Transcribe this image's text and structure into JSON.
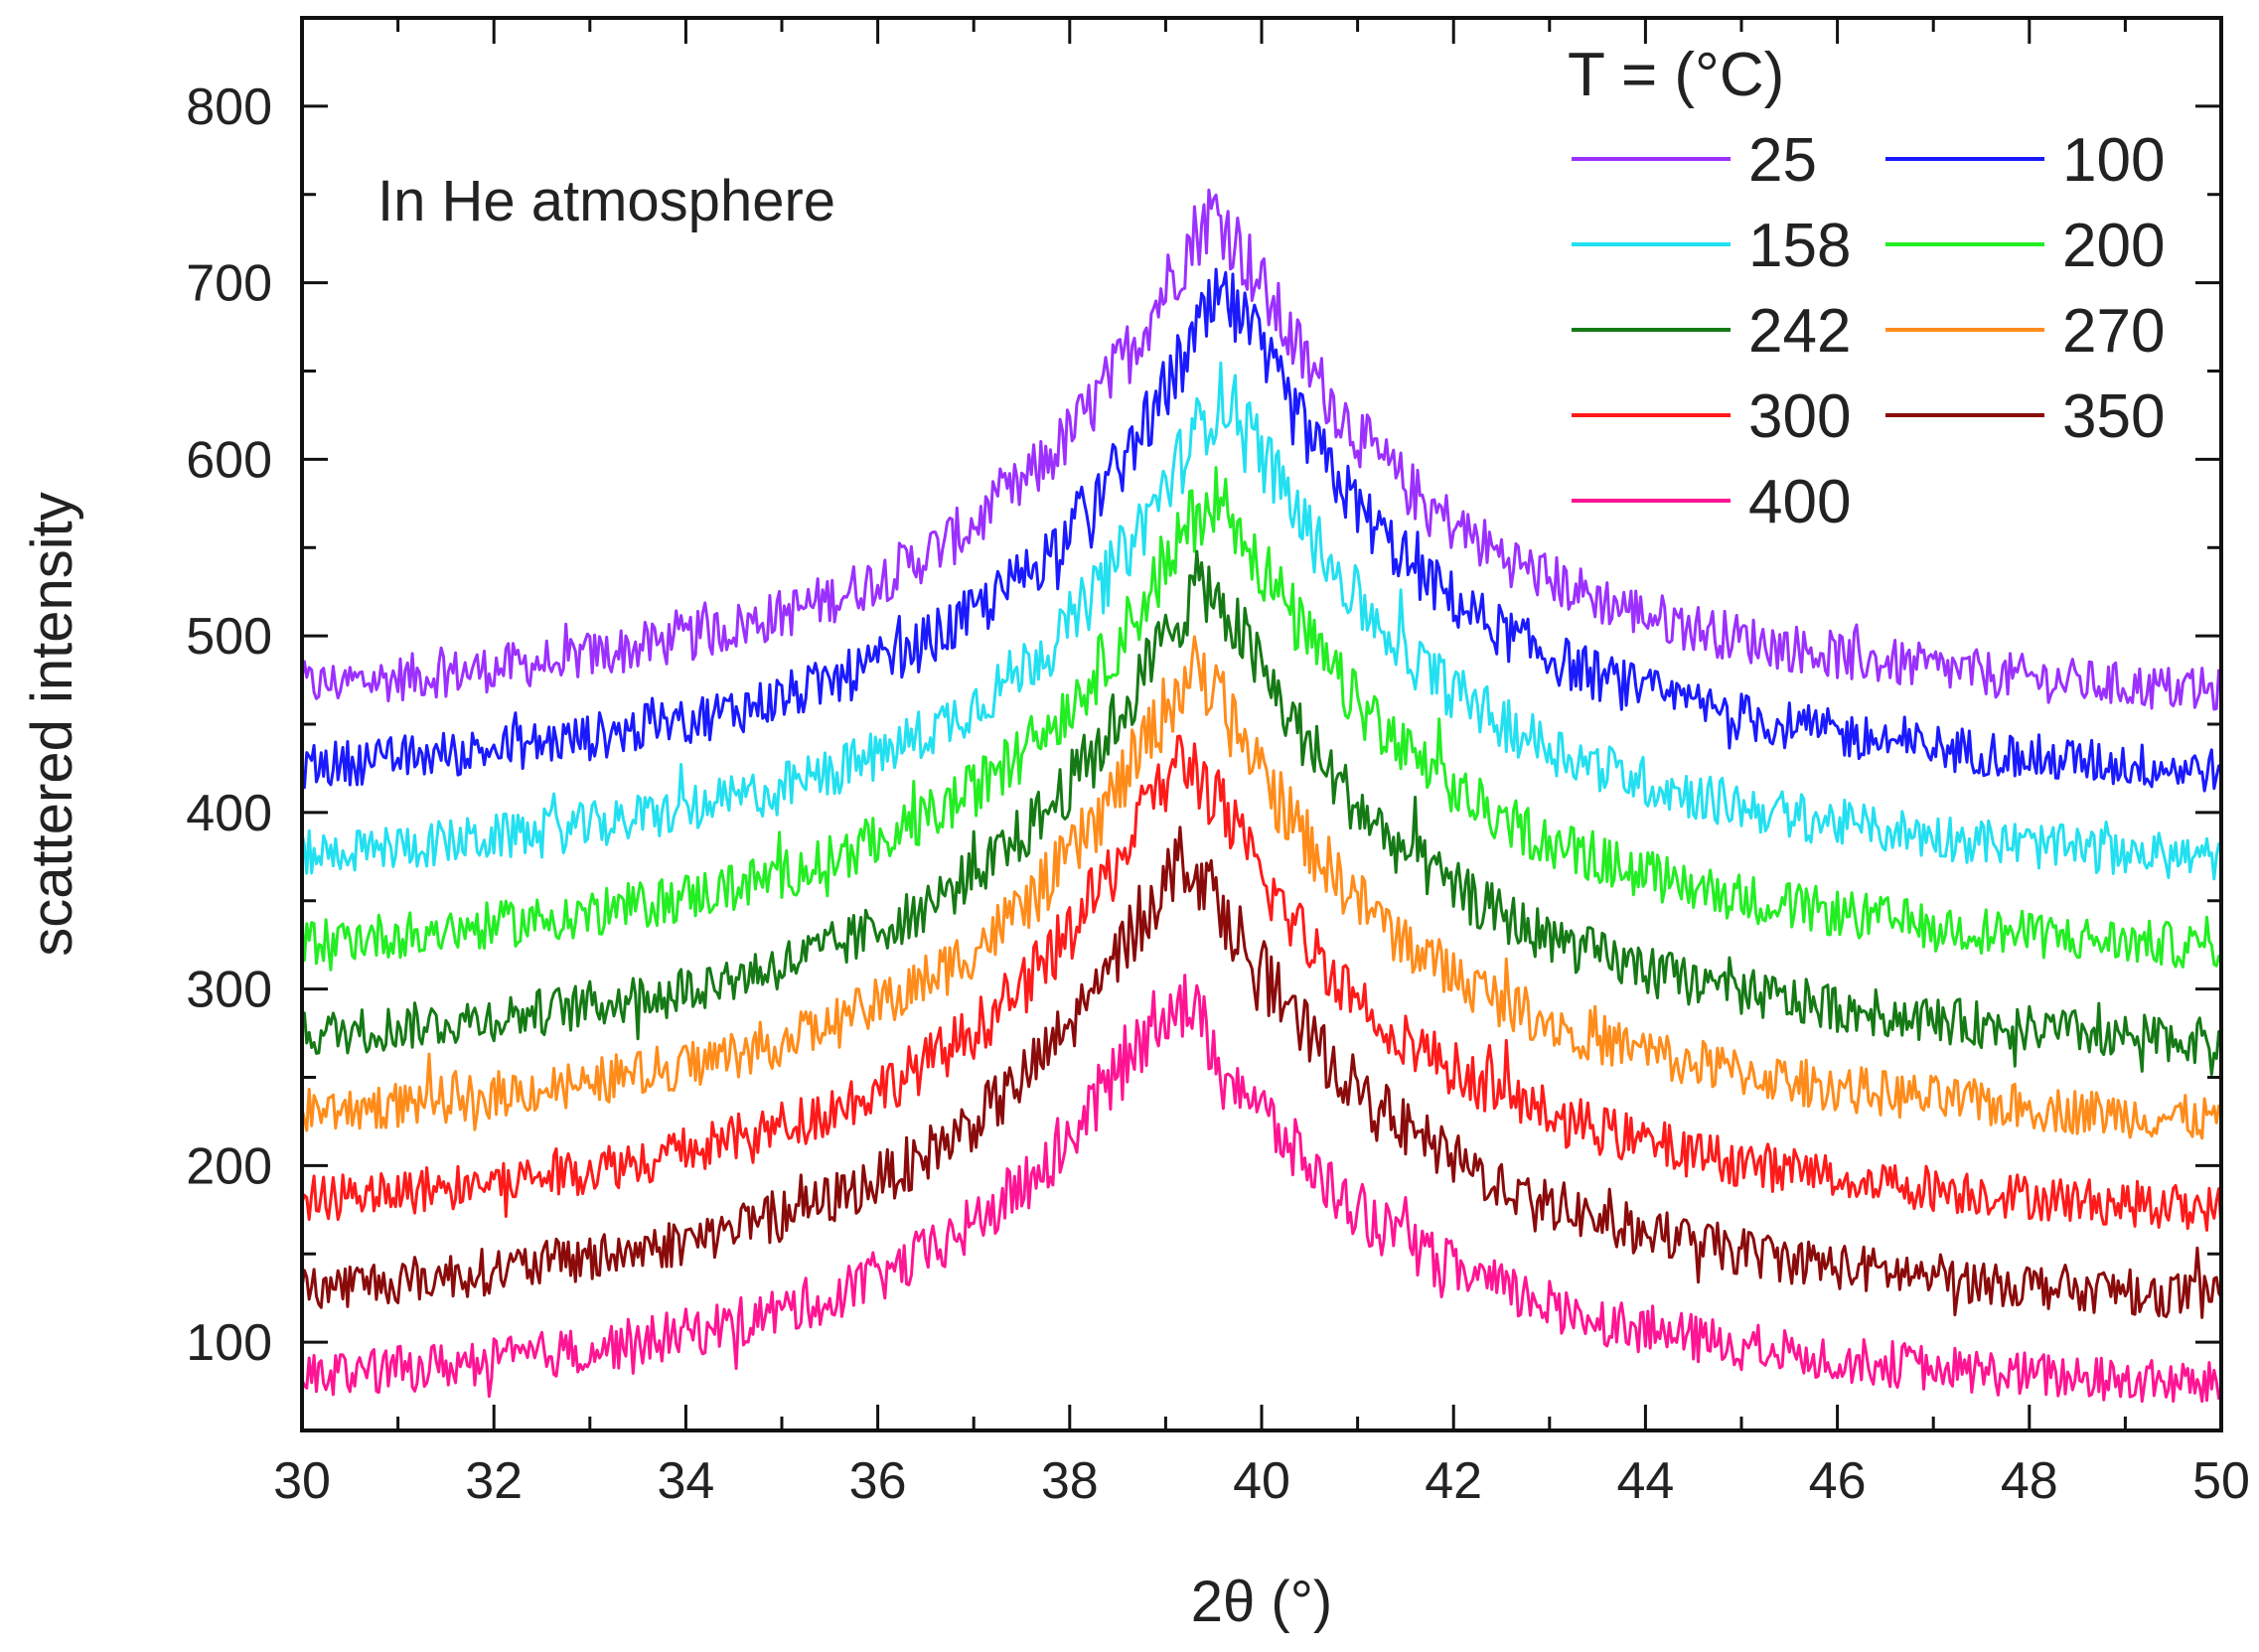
{
  "chart_data": {
    "type": "line",
    "title": "",
    "xlabel": "2θ (°)",
    "ylabel": "scattered intensity",
    "xlim": [
      30,
      50
    ],
    "ylim": [
      50,
      850
    ],
    "xticks": [
      30,
      32,
      34,
      36,
      38,
      40,
      42,
      44,
      46,
      48,
      50
    ],
    "yticks": [
      100,
      200,
      300,
      400,
      500,
      600,
      700,
      800
    ],
    "grid": false,
    "annotation": "In He atmosphere",
    "legend": {
      "title": "T = (°C)",
      "position": "top-right",
      "columns": 2
    },
    "series": [
      {
        "name": "25",
        "color": "#9b30ff",
        "baseline": 470,
        "peak_center": 39.5,
        "peak_height": 740,
        "noise": 12
      },
      {
        "name": "100",
        "color": "#1a1aff",
        "baseline": 425,
        "peak_center": 39.6,
        "peak_height": 690,
        "noise": 12
      },
      {
        "name": "158",
        "color": "#22e0f0",
        "baseline": 375,
        "peak_center": 39.6,
        "peak_height": 635,
        "noise": 12
      },
      {
        "name": "200",
        "color": "#22ee22",
        "baseline": 325,
        "peak_center": 39.5,
        "peak_height": 580,
        "noise": 12
      },
      {
        "name": "242",
        "color": "#157a15",
        "baseline": 272,
        "peak_center": 39.4,
        "peak_height": 530,
        "noise": 12
      },
      {
        "name": "270",
        "color": "#ff8c1a",
        "baseline": 228,
        "peak_center": 39.3,
        "peak_height": 480,
        "noise": 12
      },
      {
        "name": "300",
        "color": "#ff1a1a",
        "baseline": 178,
        "peak_center": 39.2,
        "peak_height": 430,
        "noise": 12
      },
      {
        "name": "350",
        "color": "#8b0a0a",
        "baseline": 128,
        "peak_center": 39.2,
        "peak_height": 375,
        "noise": 12
      },
      {
        "name": "400",
        "color": "#ff1493",
        "baseline": 78,
        "peak_center": 39.1,
        "peak_height": 295,
        "noise": 12
      }
    ]
  }
}
